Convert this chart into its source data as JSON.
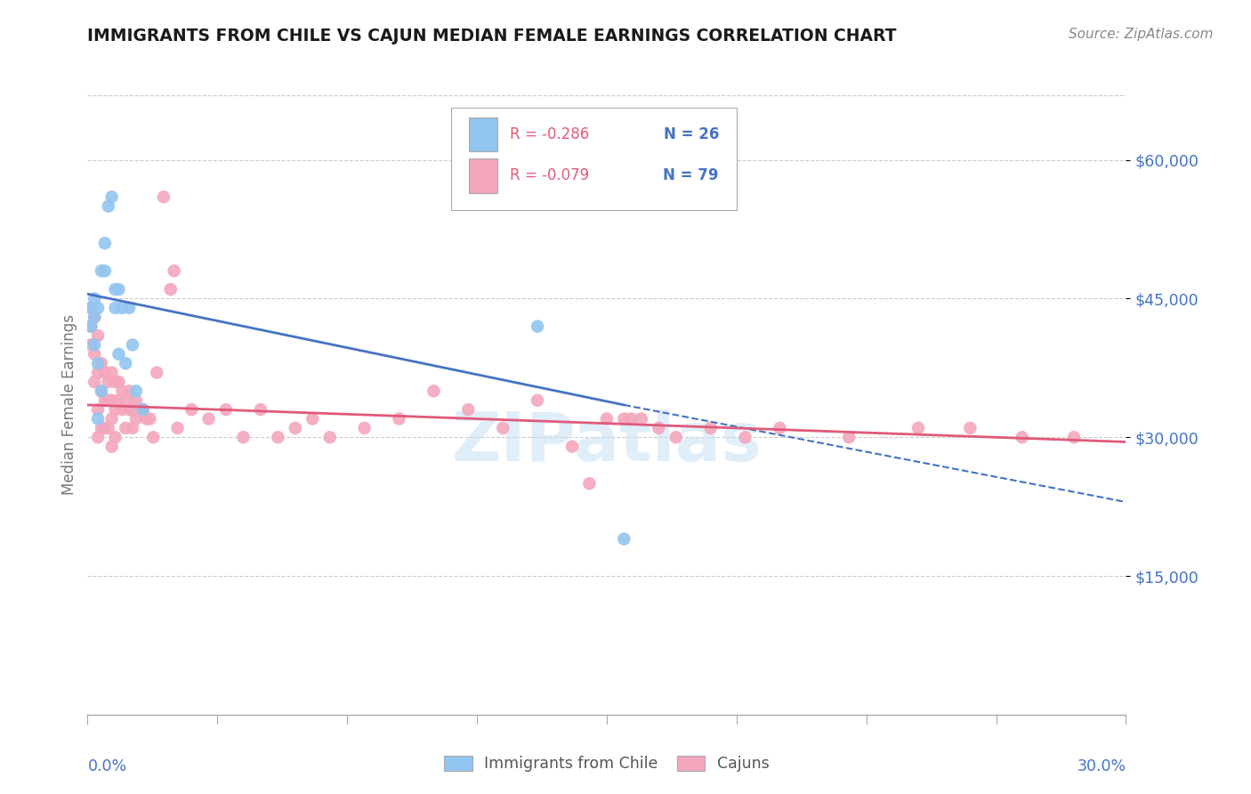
{
  "title": "IMMIGRANTS FROM CHILE VS CAJUN MEDIAN FEMALE EARNINGS CORRELATION CHART",
  "source": "Source: ZipAtlas.com",
  "ylabel": "Median Female Earnings",
  "ylim": [
    0,
    67000
  ],
  "xlim": [
    0.0,
    0.3
  ],
  "color_chile": "#92c5f0",
  "color_cajun": "#f4a7bc",
  "color_trend_chile": "#4472c4",
  "color_trend_cajun": "#e05a7a",
  "color_axis": "#4472c4",
  "background_color": "#ffffff",
  "watermark": "ZIPatlas",
  "chile_x": [
    0.001,
    0.001,
    0.002,
    0.002,
    0.002,
    0.003,
    0.003,
    0.003,
    0.004,
    0.004,
    0.005,
    0.005,
    0.006,
    0.007,
    0.008,
    0.008,
    0.009,
    0.009,
    0.01,
    0.011,
    0.012,
    0.013,
    0.014,
    0.016,
    0.13,
    0.155
  ],
  "chile_y": [
    42000,
    44000,
    45000,
    43000,
    40000,
    44000,
    38000,
    32000,
    48000,
    35000,
    48000,
    51000,
    55000,
    56000,
    46000,
    44000,
    46000,
    39000,
    44000,
    38000,
    44000,
    40000,
    35000,
    33000,
    42000,
    19000
  ],
  "cajun_x": [
    0.001,
    0.001,
    0.001,
    0.002,
    0.002,
    0.002,
    0.003,
    0.003,
    0.003,
    0.003,
    0.004,
    0.004,
    0.004,
    0.005,
    0.005,
    0.005,
    0.006,
    0.006,
    0.006,
    0.007,
    0.007,
    0.007,
    0.007,
    0.008,
    0.008,
    0.008,
    0.009,
    0.009,
    0.01,
    0.01,
    0.011,
    0.011,
    0.012,
    0.012,
    0.013,
    0.013,
    0.014,
    0.014,
    0.015,
    0.016,
    0.017,
    0.018,
    0.019,
    0.02,
    0.022,
    0.024,
    0.025,
    0.026,
    0.03,
    0.035,
    0.04,
    0.045,
    0.05,
    0.055,
    0.06,
    0.065,
    0.07,
    0.08,
    0.09,
    0.1,
    0.11,
    0.12,
    0.13,
    0.14,
    0.145,
    0.15,
    0.155,
    0.16,
    0.165,
    0.17,
    0.18,
    0.19,
    0.2,
    0.22,
    0.24,
    0.255,
    0.27,
    0.285,
    0.157
  ],
  "cajun_y": [
    44000,
    42000,
    40000,
    43000,
    39000,
    36000,
    41000,
    37000,
    33000,
    30000,
    38000,
    35000,
    31000,
    37000,
    34000,
    31000,
    36000,
    34000,
    31000,
    37000,
    34000,
    32000,
    29000,
    36000,
    33000,
    30000,
    36000,
    34000,
    35000,
    33000,
    34000,
    31000,
    35000,
    33000,
    33000,
    31000,
    34000,
    32000,
    33000,
    33000,
    32000,
    32000,
    30000,
    37000,
    56000,
    46000,
    48000,
    31000,
    33000,
    32000,
    33000,
    30000,
    33000,
    30000,
    31000,
    32000,
    30000,
    31000,
    32000,
    35000,
    33000,
    31000,
    34000,
    29000,
    25000,
    32000,
    32000,
    32000,
    31000,
    30000,
    31000,
    30000,
    31000,
    30000,
    31000,
    31000,
    30000,
    30000,
    32000
  ],
  "trend_chile_x0": 0.0,
  "trend_chile_x1": 0.155,
  "trend_chile_y0": 45500,
  "trend_chile_y1": 33500,
  "trend_chile_dash_x0": 0.155,
  "trend_chile_dash_x1": 0.3,
  "trend_chile_dash_y0": 33500,
  "trend_chile_dash_y1": 23000,
  "trend_cajun_x0": 0.0,
  "trend_cajun_x1": 0.3,
  "trend_cajun_y0": 33500,
  "trend_cajun_y1": 29500,
  "legend_r1": "R = -0.286",
  "legend_n1": "N = 26",
  "legend_r2": "R = -0.079",
  "legend_n2": "N = 79",
  "ytick_vals": [
    15000,
    30000,
    45000,
    60000
  ],
  "ytick_labels": [
    "$15,000",
    "$30,000",
    "$45,000",
    "$60,000"
  ]
}
